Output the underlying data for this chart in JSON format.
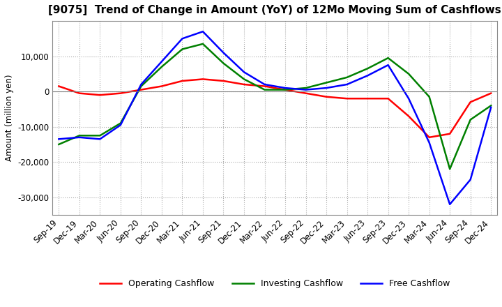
{
  "title": "[9075]  Trend of Change in Amount (YoY) of 12Mo Moving Sum of Cashflows",
  "ylabel": "Amount (million yen)",
  "x_labels": [
    "Sep-19",
    "Dec-19",
    "Mar-20",
    "Jun-20",
    "Sep-20",
    "Dec-20",
    "Mar-21",
    "Jun-21",
    "Sep-21",
    "Dec-21",
    "Mar-22",
    "Jun-22",
    "Sep-22",
    "Dec-22",
    "Mar-23",
    "Jun-23",
    "Sep-23",
    "Dec-23",
    "Mar-24",
    "Jun-24",
    "Sep-24",
    "Dec-24"
  ],
  "operating": [
    1500,
    -500,
    -1000,
    -500,
    500,
    1500,
    3000,
    3500,
    3000,
    2000,
    1500,
    500,
    -500,
    -1500,
    -2000,
    -2000,
    -2000,
    -7000,
    -13000,
    -12000,
    -3000,
    -500
  ],
  "investing": [
    -15000,
    -12500,
    -12500,
    -9000,
    1500,
    7000,
    12000,
    13500,
    8000,
    3500,
    500,
    500,
    1000,
    2500,
    4000,
    6500,
    9500,
    5000,
    -1500,
    -22000,
    -8000,
    -4000
  ],
  "free": [
    -13500,
    -13000,
    -13500,
    -9500,
    2000,
    8500,
    15000,
    17000,
    11000,
    5500,
    2000,
    1000,
    500,
    1000,
    2000,
    4500,
    7500,
    -2000,
    -14500,
    -32000,
    -25000,
    -4500
  ],
  "ylim": [
    -35000,
    20000
  ],
  "yticks": [
    -30000,
    -20000,
    -10000,
    0,
    10000
  ],
  "operating_color": "#ff0000",
  "investing_color": "#008000",
  "free_color": "#0000ff",
  "background_color": "#ffffff",
  "grid_color": "#aaaaaa",
  "title_fontsize": 11,
  "axis_fontsize": 8.5,
  "legend_fontsize": 9
}
